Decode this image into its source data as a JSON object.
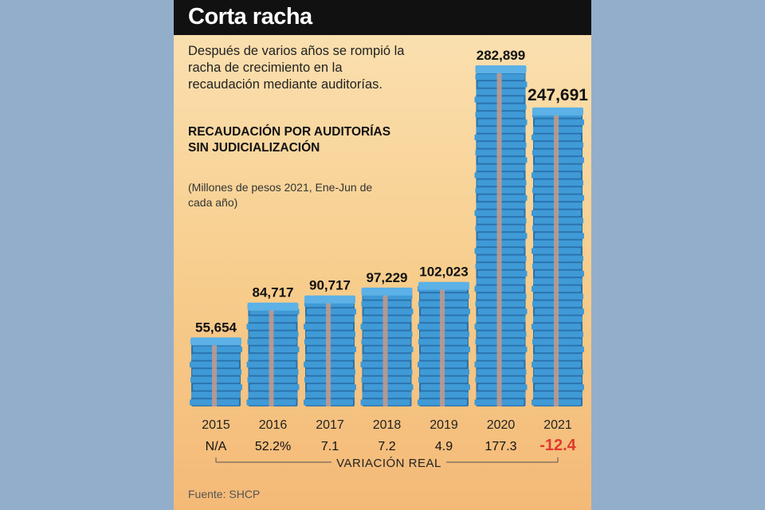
{
  "header": {
    "title": "Corta racha"
  },
  "intro": "Después de varios años se rompió la racha de crecimiento en la recaudación mediante auditorías.",
  "subtitle": "RECAUDACIÓN POR AUDITORÍAS SIN JUDICIALIZACIÓN",
  "units": "(Millones de pesos 2021, Ene-Jun de cada año)",
  "source": "Fuente: SHCP",
  "colors": {
    "bill": "#3f9ad6",
    "bill_dark": "#2a72ad",
    "band": "#c79a8a",
    "negative": "#e03a2f"
  },
  "chart_data": {
    "type": "bar",
    "categories": [
      "2015",
      "2016",
      "2017",
      "2018",
      "2019",
      "2020",
      "2021"
    ],
    "values": [
      55654,
      84717,
      90717,
      97229,
      102023,
      282899,
      247691
    ],
    "value_labels": [
      "55,654",
      "84,717",
      "90,717",
      "97,229",
      "102,023",
      "282,899",
      "247,691"
    ],
    "variation_label": "VARIACIÓN REAL",
    "variation": [
      "N/A",
      "52.2%",
      "7.1",
      "7.2",
      "4.9",
      "177.3",
      "-12.4"
    ],
    "ylim": [
      0,
      282899
    ]
  }
}
